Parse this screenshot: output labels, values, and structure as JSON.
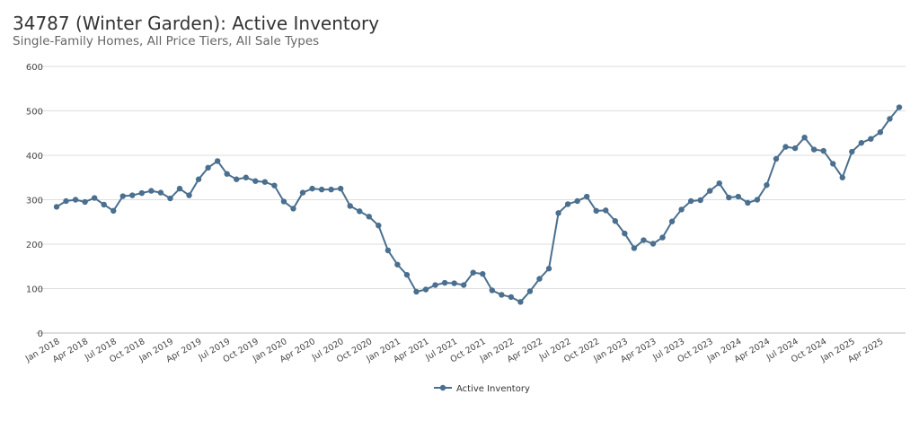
{
  "chart_data": {
    "type": "line",
    "title": "34787 (Winter Garden): Active Inventory",
    "subtitle": "Single-Family Homes, All Price Tiers, All Sale Types",
    "ylim": [
      0,
      600
    ],
    "yticks": [
      0,
      100,
      200,
      300,
      400,
      500,
      600
    ],
    "grid": true,
    "legend_position": "bottom",
    "color": "#4a6f8f",
    "x_start": "Jan 2018",
    "xtick_labels": [
      "Jan 2018",
      "Apr 2018",
      "Jul 2018",
      "Oct 2018",
      "Jan 2019",
      "Apr 2019",
      "Jul 2019",
      "Oct 2019",
      "Jan 2020",
      "Apr 2020",
      "Jul 2020",
      "Oct 2020",
      "Jan 2021",
      "Apr 2021",
      "Jul 2021",
      "Oct 2021",
      "Jan 2022",
      "Apr 2022",
      "Jul 2022",
      "Oct 2022",
      "Jan 2023",
      "Apr 2023",
      "Jul 2023",
      "Oct 2023",
      "Jan 2024",
      "Apr 2024",
      "Jul 2024",
      "Oct 2024",
      "Jan 2025",
      "Apr 2025"
    ],
    "series": [
      {
        "name": "Active Inventory",
        "values": [
          284,
          297,
          300,
          295,
          304,
          289,
          275,
          308,
          310,
          315,
          320,
          316,
          303,
          325,
          310,
          346,
          372,
          387,
          358,
          346,
          350,
          342,
          340,
          332,
          296,
          280,
          316,
          325,
          323,
          323,
          325,
          286,
          274,
          262,
          242,
          186,
          154,
          131,
          93,
          98,
          108,
          113,
          112,
          108,
          136,
          133,
          96,
          86,
          81,
          70,
          94,
          122,
          145,
          270,
          290,
          297,
          307,
          275,
          276,
          252,
          224,
          191,
          209,
          201,
          215,
          251,
          278,
          297,
          299,
          320,
          337,
          305,
          307,
          293,
          300,
          333,
          392,
          419,
          416,
          440,
          413,
          410,
          381,
          350,
          408,
          428,
          437,
          452,
          482,
          508
        ]
      }
    ]
  }
}
